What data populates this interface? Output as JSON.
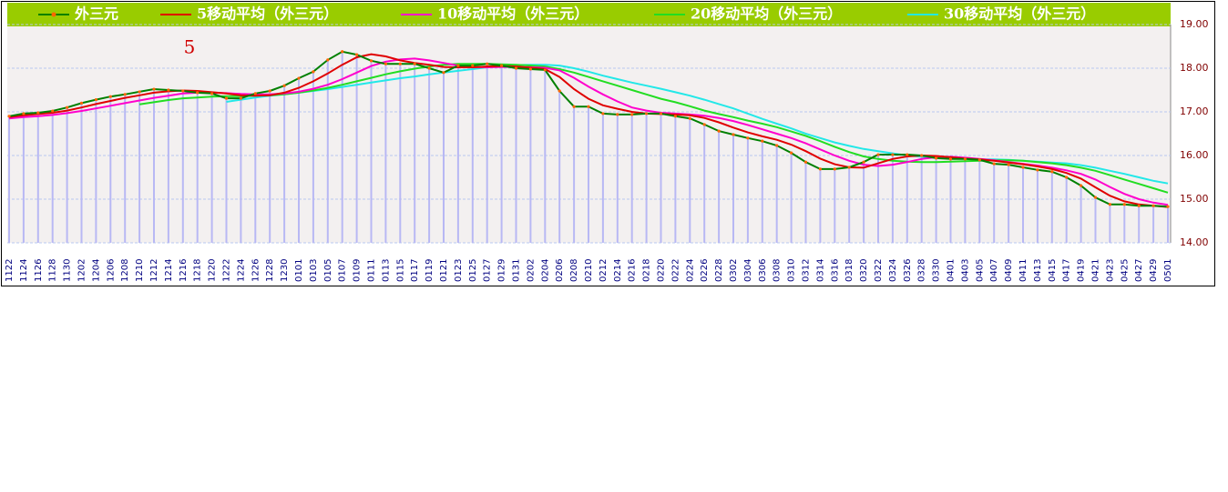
{
  "chart_data": {
    "type": "line",
    "annotation": "5",
    "categories": [
      "1122",
      "1124",
      "1126",
      "1128",
      "1130",
      "1202",
      "1204",
      "1206",
      "1208",
      "1210",
      "1212",
      "1214",
      "1216",
      "1218",
      "1220",
      "1222",
      "1224",
      "1226",
      "1228",
      "1230",
      "0101",
      "0103",
      "0105",
      "0107",
      "0109",
      "0111",
      "0113",
      "0115",
      "0117",
      "0119",
      "0121",
      "0123",
      "0125",
      "0127",
      "0129",
      "0131",
      "0202",
      "0204",
      "0206",
      "0208",
      "0210",
      "0212",
      "0214",
      "0216",
      "0218",
      "0220",
      "0222",
      "0224",
      "0226",
      "0228",
      "0302",
      "0304",
      "0306",
      "0308",
      "0310",
      "0312",
      "0314",
      "0316",
      "0318",
      "0320",
      "0322",
      "0324",
      "0326",
      "0328",
      "0330",
      "0401",
      "0403",
      "0405",
      "0407",
      "0409",
      "0411",
      "0413",
      "0415",
      "0417",
      "0419",
      "0421",
      "0423",
      "0425",
      "0427",
      "0429",
      "0501"
    ],
    "series": [
      {
        "name": "外三元",
        "color": "#008000",
        "bar_color": "#b8b8f4",
        "values": [
          16.9,
          16.96,
          16.98,
          17.02,
          17.1,
          17.2,
          17.28,
          17.35,
          17.4,
          17.46,
          17.52,
          17.5,
          17.48,
          17.44,
          17.42,
          17.31,
          17.31,
          17.42,
          17.48,
          17.6,
          17.77,
          17.92,
          18.19,
          18.38,
          18.31,
          18.17,
          18.1,
          18.1,
          18.1,
          18.0,
          17.9,
          18.06,
          18.06,
          18.1,
          18.06,
          18.0,
          17.98,
          17.96,
          17.48,
          17.12,
          17.12,
          16.96,
          16.94,
          16.94,
          16.96,
          16.96,
          16.9,
          16.85,
          16.71,
          16.56,
          16.48,
          16.4,
          16.33,
          16.23,
          16.06,
          15.85,
          15.69,
          15.69,
          15.73,
          15.85,
          16.02,
          16.02,
          16.02,
          16.0,
          15.94,
          15.92,
          15.92,
          15.9,
          15.81,
          15.79,
          15.73,
          15.67,
          15.63,
          15.5,
          15.31,
          15.04,
          14.88,
          14.88,
          14.85,
          14.85,
          14.83
        ]
      },
      {
        "name": "5移动平均（外三元）",
        "color": "#e00000",
        "values": [
          16.88,
          16.92,
          16.95,
          16.98,
          17.03,
          17.1,
          17.18,
          17.25,
          17.32,
          17.38,
          17.44,
          17.47,
          17.49,
          17.48,
          17.45,
          17.42,
          17.38,
          17.37,
          17.38,
          17.44,
          17.55,
          17.7,
          17.88,
          18.08,
          18.25,
          18.32,
          18.27,
          18.18,
          18.12,
          18.08,
          18.03,
          18.02,
          18.02,
          18.04,
          18.05,
          18.04,
          18.01,
          17.98,
          17.8,
          17.52,
          17.3,
          17.15,
          17.07,
          17.0,
          16.96,
          16.95,
          16.94,
          16.92,
          16.86,
          16.76,
          16.64,
          16.53,
          16.44,
          16.36,
          16.25,
          16.1,
          15.93,
          15.8,
          15.73,
          15.72,
          15.82,
          15.92,
          15.98,
          16.0,
          15.99,
          15.96,
          15.93,
          15.91,
          15.88,
          15.84,
          15.8,
          15.75,
          15.69,
          15.6,
          15.47,
          15.27,
          15.08,
          14.95,
          14.88,
          14.85,
          14.82
        ]
      },
      {
        "name": "10移动平均（外三元）",
        "color": "#ff00cc",
        "values": [
          16.85,
          16.88,
          16.9,
          16.93,
          16.97,
          17.02,
          17.08,
          17.14,
          17.2,
          17.26,
          17.32,
          17.37,
          17.42,
          17.44,
          17.44,
          17.43,
          17.41,
          17.4,
          17.4,
          17.42,
          17.46,
          17.53,
          17.62,
          17.75,
          17.9,
          18.05,
          18.15,
          18.2,
          18.22,
          18.18,
          18.12,
          18.06,
          18.02,
          18.02,
          18.03,
          18.03,
          18.02,
          18.01,
          17.95,
          17.78,
          17.58,
          17.4,
          17.24,
          17.1,
          17.03,
          16.98,
          16.96,
          16.94,
          16.91,
          16.86,
          16.79,
          16.7,
          16.6,
          16.5,
          16.4,
          16.28,
          16.14,
          16.0,
          15.88,
          15.79,
          15.76,
          15.79,
          15.85,
          15.92,
          15.96,
          15.97,
          15.95,
          15.92,
          15.89,
          15.85,
          15.81,
          15.77,
          15.72,
          15.66,
          15.58,
          15.45,
          15.28,
          15.12,
          15.0,
          14.92,
          14.87
        ]
      },
      {
        "name": "20移动平均（外三元）",
        "color": "#22dd22",
        "values": [
          null,
          null,
          null,
          null,
          null,
          null,
          null,
          null,
          null,
          17.17,
          17.22,
          17.27,
          17.31,
          17.33,
          17.35,
          17.36,
          17.36,
          17.37,
          17.38,
          17.4,
          17.44,
          17.49,
          17.55,
          17.62,
          17.7,
          17.78,
          17.86,
          17.93,
          17.99,
          18.04,
          18.08,
          18.1,
          18.1,
          18.1,
          18.09,
          18.08,
          18.06,
          18.04,
          17.98,
          17.9,
          17.8,
          17.7,
          17.6,
          17.5,
          17.4,
          17.3,
          17.22,
          17.13,
          17.03,
          16.95,
          16.88,
          16.8,
          16.73,
          16.65,
          16.55,
          16.45,
          16.33,
          16.2,
          16.08,
          15.98,
          15.92,
          15.88,
          15.86,
          15.85,
          15.85,
          15.86,
          15.87,
          15.88,
          15.89,
          15.89,
          15.88,
          15.85,
          15.82,
          15.78,
          15.72,
          15.65,
          15.55,
          15.45,
          15.35,
          15.25,
          15.15
        ]
      },
      {
        "name": "30移动平均（外三元）",
        "color": "#22e8e8",
        "values": [
          null,
          null,
          null,
          null,
          null,
          null,
          null,
          null,
          null,
          null,
          null,
          null,
          null,
          null,
          null,
          17.23,
          17.28,
          17.33,
          17.37,
          17.4,
          17.44,
          17.48,
          17.52,
          17.57,
          17.62,
          17.67,
          17.72,
          17.77,
          17.81,
          17.86,
          17.9,
          17.94,
          17.98,
          18.02,
          18.05,
          18.07,
          18.08,
          18.08,
          18.06,
          18.0,
          17.92,
          17.83,
          17.75,
          17.67,
          17.6,
          17.53,
          17.45,
          17.37,
          17.28,
          17.18,
          17.08,
          16.96,
          16.84,
          16.73,
          16.62,
          16.5,
          16.4,
          16.3,
          16.22,
          16.15,
          16.1,
          16.05,
          16.0,
          15.97,
          15.95,
          15.93,
          15.92,
          15.91,
          15.91,
          15.9,
          15.88,
          15.86,
          15.84,
          15.82,
          15.78,
          15.72,
          15.65,
          15.58,
          15.5,
          15.42,
          15.36
        ]
      }
    ],
    "ylim": [
      14,
      19
    ],
    "yticks": [
      {
        "value": 14,
        "label": "14.00"
      },
      {
        "value": 15,
        "label": "15.00"
      },
      {
        "value": 16,
        "label": "16.00"
      },
      {
        "value": 17,
        "label": "17.00"
      },
      {
        "value": 18,
        "label": "18.00"
      },
      {
        "value": 19,
        "label": "19.00"
      }
    ],
    "grid": true
  }
}
